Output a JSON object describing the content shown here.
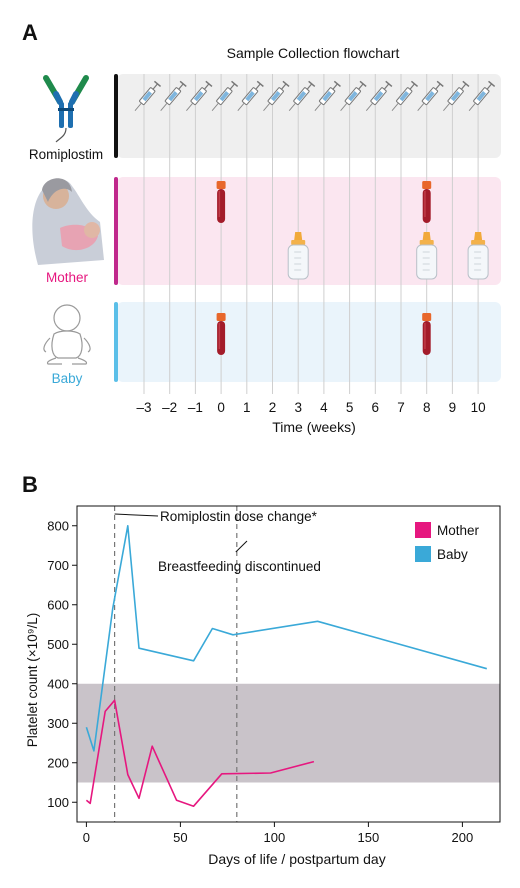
{
  "colors": {
    "mother": "#e6177f",
    "baby": "#3aa9d8",
    "romi_bar": "#111111",
    "mother_bar": "#c0288c",
    "baby_bar": "#5bbfe8",
    "romi_bg": "#efefef",
    "mother_bg": "#fbe6f0",
    "baby_bg": "#eaf4fb",
    "normal_band": "#c9c3c9",
    "tube_blood": "#a31c2a",
    "tube_cap": "#e8672b",
    "bottle_cap": "#f1a93a"
  },
  "panel_a": {
    "letter": "A",
    "title": "Sample Collection flowchart",
    "rows": [
      {
        "label": "Romiplostim",
        "icon": "antibody-icon"
      },
      {
        "label": "Mother",
        "icon": "mother-breastfeeding-icon"
      },
      {
        "label": "Baby",
        "icon": "baby-icon"
      }
    ],
    "weeks": [
      "–3",
      "–2",
      "–1",
      "0",
      "1",
      "2",
      "3",
      "4",
      "5",
      "6",
      "7",
      "8",
      "9",
      "10"
    ],
    "xlabel": "Time (weeks)",
    "injection_weeks": [
      -3,
      -2,
      -1,
      0,
      1,
      2,
      3,
      4,
      5,
      6,
      7,
      8,
      9,
      10
    ],
    "mother_blood_weeks": [
      0,
      8
    ],
    "mother_milk_weeks": [
      3,
      8,
      10
    ],
    "baby_blood_weeks": [
      0,
      8
    ]
  },
  "panel_b": {
    "letter": "B"
  },
  "chart_data": {
    "type": "line",
    "title": "",
    "xlabel": "Days of life / postpartum day",
    "ylabel": "Platelet count (×10⁹/L)",
    "xlim": [
      -5,
      220
    ],
    "ylim": [
      50,
      850
    ],
    "xticks": [
      0,
      50,
      100,
      150,
      200
    ],
    "yticks": [
      100,
      200,
      300,
      400,
      500,
      600,
      700,
      800
    ],
    "legend_position": "top-right",
    "normal_range": [
      150,
      400
    ],
    "series": [
      {
        "name": "Mother",
        "x": [
          0,
          2,
          10,
          15,
          22,
          28,
          35,
          48,
          57,
          72,
          98,
          121
        ],
        "y": [
          105,
          97,
          330,
          358,
          170,
          110,
          242,
          105,
          90,
          172,
          174,
          203
        ]
      },
      {
        "name": "Baby",
        "x": [
          0,
          4,
          14,
          22,
          28,
          57,
          67,
          78,
          123,
          213
        ],
        "y": [
          290,
          230,
          590,
          800,
          490,
          458,
          540,
          524,
          558,
          438
        ]
      }
    ],
    "annotations": [
      {
        "text": "Romiplostin dose change*",
        "x": 15
      },
      {
        "text": "Breastfeeding discontinued",
        "x": 80
      }
    ]
  }
}
